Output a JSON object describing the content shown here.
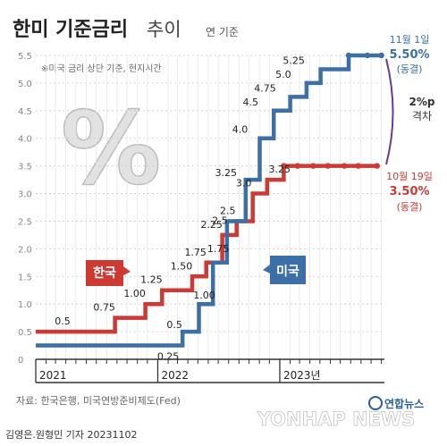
{
  "header": {
    "title_main": "한미 기준금리",
    "title_sub": "추이",
    "unit": "연 기준"
  },
  "note": "※미국 금리 상단 기준, 현지시간",
  "colors": {
    "us": "#3b6fa6",
    "korea": "#cc3a33",
    "gap": "#6a3c8c",
    "grid": "#c9c9c9",
    "axis": "#333333",
    "tick_text": "#888888"
  },
  "chart_data": {
    "type": "line",
    "title": "한미 기준금리 추이",
    "subtitle": "연 기준",
    "ylim": [
      0,
      5.5
    ],
    "y_ticks": [
      "0",
      "0.5",
      "1.0",
      "1.5",
      "2.0",
      "2.5",
      "3.0",
      "3.5",
      "4.0",
      "4.5",
      "5.0",
      "5.5"
    ],
    "x_ticks": [
      "2021",
      "2022",
      "2023년"
    ],
    "series": [
      {
        "name": "미국",
        "color": "#3b6fa6",
        "steps": [
          {
            "x": "2021-01-01",
            "y": 0.25
          },
          {
            "x": "2022-03-16",
            "y": 0.5,
            "label": "0.5"
          },
          {
            "x": "2022-05-04",
            "y": 1.0,
            "label": "1.00"
          },
          {
            "x": "2022-06-15",
            "y": 1.75,
            "label": "1.75"
          },
          {
            "x": "2022-07-27",
            "y": 2.5,
            "label": "2.5"
          },
          {
            "x": "2022-09-21",
            "y": 3.25,
            "label": "3.25"
          },
          {
            "x": "2022-11-02",
            "y": 4.0,
            "label": "4.0"
          },
          {
            "x": "2022-12-14",
            "y": 4.5,
            "label": "4.5"
          },
          {
            "x": "2023-02-01",
            "y": 4.75,
            "label": "4.75"
          },
          {
            "x": "2023-03-22",
            "y": 5.0,
            "label": "5.0"
          },
          {
            "x": "2023-05-03",
            "y": 5.25,
            "label": "5.25"
          },
          {
            "x": "2023-07-26",
            "y": 5.5
          },
          {
            "x": "2023-11-01",
            "y": 5.5
          }
        ],
        "first_label": "0.25",
        "hold_dates": [
          "2023-09-20",
          "2023-11-01"
        ]
      },
      {
        "name": "한국",
        "color": "#cc3a33",
        "steps": [
          {
            "x": "2021-01-01",
            "y": 0.5,
            "label": "0.5"
          },
          {
            "x": "2021-08-26",
            "y": 0.75,
            "label": "0.75"
          },
          {
            "x": "2021-11-25",
            "y": 1.0,
            "label": "1.00"
          },
          {
            "x": "2022-01-14",
            "y": 1.25,
            "label": "1.25"
          },
          {
            "x": "2022-04-14",
            "y": 1.5,
            "label": "1.50"
          },
          {
            "x": "2022-05-26",
            "y": 1.75,
            "label": "1.75"
          },
          {
            "x": "2022-07-13",
            "y": 2.25,
            "label": "2.25"
          },
          {
            "x": "2022-08-25",
            "y": 2.5,
            "label": "2.5"
          },
          {
            "x": "2022-10-12",
            "y": 3.0,
            "label": "3.0"
          },
          {
            "x": "2022-11-24",
            "y": 3.25,
            "label": "3.25"
          },
          {
            "x": "2023-01-13",
            "y": 3.5
          },
          {
            "x": "2023-10-19",
            "y": 3.5
          }
        ],
        "hold_dates": [
          "2023-02-23",
          "2023-04-11",
          "2023-05-25",
          "2023-07-13",
          "2023-08-24",
          "2023-10-19"
        ]
      }
    ],
    "end_date": "2023-11-10",
    "annotations": {
      "us": {
        "date": "11월 1일",
        "value": "5.50%",
        "status": "(동결)"
      },
      "korea": {
        "date": "10월 19일",
        "value": "3.50%",
        "status": "(동결)"
      },
      "gap": {
        "value": "2%p",
        "label": "격차"
      }
    },
    "legend": {
      "korea": "한국",
      "us": "미국"
    }
  },
  "source": "자료: 한국은행, 미국연방준비제도(Fed)",
  "credit": "김영은.원형민 기자  20231102",
  "logo": {
    "text": "연합뉴스",
    "watermark": "YONHAP NEWS"
  }
}
